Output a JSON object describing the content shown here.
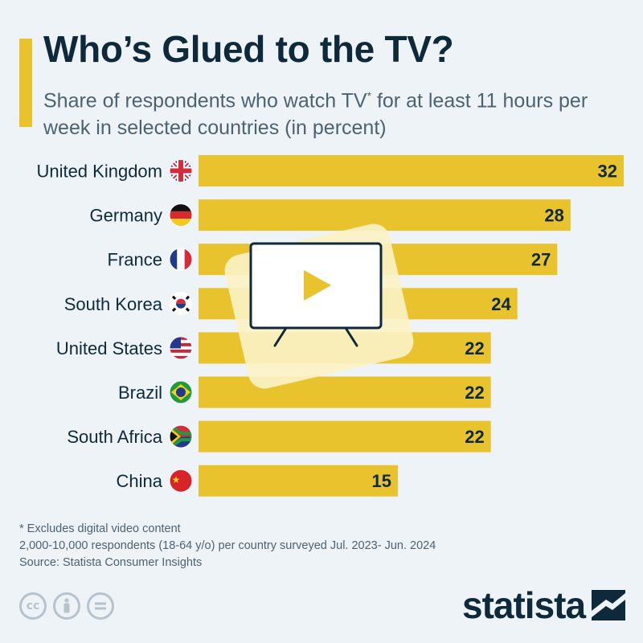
{
  "header": {
    "title": "Who’s Glued to the TV?",
    "subtitle_part1": "Share of respondents who watch TV",
    "subtitle_sup": "*",
    "subtitle_part2": " for at least 11 hours per week in selected countries (in percent)"
  },
  "colors": {
    "bar": "#e8c32e",
    "text_dark": "#0e2a3a",
    "text_muted": "#4d6270",
    "background": "#eef3f7",
    "tv_highlight": "#fbf2c4"
  },
  "chart_data": {
    "type": "bar",
    "orientation": "horizontal",
    "categories": [
      "United Kingdom",
      "Germany",
      "France",
      "South Korea",
      "United States",
      "Brazil",
      "South Africa",
      "China"
    ],
    "values": [
      32,
      28,
      27,
      24,
      22,
      22,
      22,
      15
    ],
    "flags": [
      "uk-flag-icon",
      "germany-flag-icon",
      "france-flag-icon",
      "south-korea-flag-icon",
      "usa-flag-icon",
      "brazil-flag-icon",
      "south-africa-flag-icon",
      "china-flag-icon"
    ],
    "data_labels": true,
    "xlim": [
      0,
      32
    ],
    "grid": false,
    "legend": "none"
  },
  "notes": {
    "footnote": "* Excludes digital video content",
    "sample": "2,000-10,000 respondents (18-64 y/o) per country surveyed Jul. 2023- Jun. 2024",
    "source": "Source: Statista Consumer Insights"
  },
  "footer": {
    "brand": "statista",
    "cc_icons": [
      "creative-commons-icon",
      "attribution-icon",
      "no-derivatives-icon"
    ]
  }
}
